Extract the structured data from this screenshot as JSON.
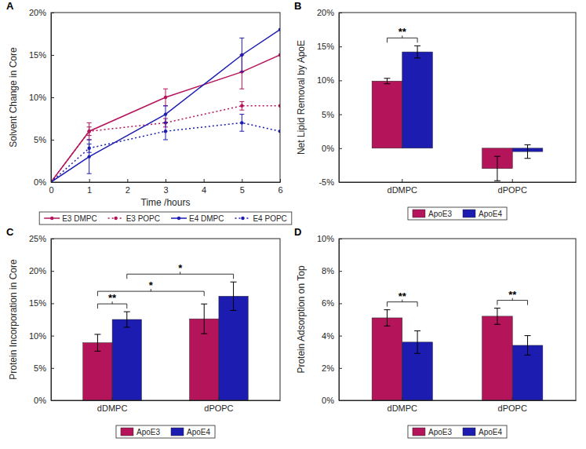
{
  "chart_data": [
    {
      "type": "line",
      "title": "A",
      "x_label": "Time /hours",
      "y_label": "Solvent Change in Core",
      "x": [
        0,
        1,
        3,
        5,
        6
      ],
      "xlim": [
        0,
        6
      ],
      "xticks": [
        0,
        1,
        2,
        3,
        4,
        5,
        6
      ],
      "ylim": [
        0,
        20
      ],
      "yticks": [
        {
          "value": 0,
          "label": "0%"
        },
        {
          "value": 5,
          "label": "5%"
        },
        {
          "value": 10,
          "label": "10%"
        },
        {
          "value": 15,
          "label": "15%"
        },
        {
          "value": 20,
          "label": "20%"
        }
      ],
      "grid": false,
      "legend": "bottom",
      "series": [
        {
          "name": "E3 DMPC",
          "color": "#b4145a",
          "line_style": "solid",
          "marker": "circle",
          "values": [
            0,
            6,
            10,
            13,
            15
          ],
          "errors": [
            null,
            1,
            1,
            2,
            null
          ]
        },
        {
          "name": "E3 POPC",
          "color": "#b4145a",
          "line_style": "dotted",
          "marker": "circle",
          "values": [
            0,
            6,
            7,
            9,
            9
          ],
          "errors": [
            null,
            0.5,
            0.5,
            0.5,
            null
          ]
        },
        {
          "name": "E4 DMPC",
          "color": "#1c1cb0",
          "line_style": "solid",
          "marker": "circle",
          "values": [
            0,
            3,
            8,
            15,
            18
          ],
          "errors": [
            null,
            2,
            1,
            2,
            null
          ]
        },
        {
          "name": "E4 POPC",
          "color": "#1c1cb0",
          "line_style": "dotted",
          "marker": "circle",
          "values": [
            0,
            4,
            6,
            7,
            6
          ],
          "errors": [
            null,
            0.5,
            1,
            1,
            null
          ]
        }
      ]
    },
    {
      "type": "bar",
      "title": "B",
      "y_label": "Net Lipid Removal by ApoE",
      "categories": [
        "dDMPC",
        "dPOPC"
      ],
      "ylim": [
        -5,
        20
      ],
      "yticks": [
        {
          "value": -5,
          "label": "-5%"
        },
        {
          "value": 0,
          "label": "0%"
        },
        {
          "value": 5,
          "label": "5%"
        },
        {
          "value": 10,
          "label": "10%"
        },
        {
          "value": 15,
          "label": "15%"
        },
        {
          "value": 20,
          "label": "20%"
        }
      ],
      "grid": false,
      "legend": "bottom",
      "series": [
        {
          "name": "ApoE3",
          "color": "#b4145a",
          "values": [
            9.9,
            -3.0
          ],
          "errors": [
            0.4,
            1.8
          ]
        },
        {
          "name": "ApoE4",
          "color": "#1c1cb0",
          "values": [
            14.2,
            -0.5
          ],
          "errors": [
            0.9,
            1.0
          ]
        }
      ],
      "significance": [
        {
          "label": "**",
          "from": [
            0,
            0
          ],
          "to": [
            0,
            1
          ]
        }
      ]
    },
    {
      "type": "bar",
      "title": "C",
      "y_label": "Protein Incorporation in Core",
      "categories": [
        "dDMPC",
        "dPOPC"
      ],
      "ylim": [
        0,
        25
      ],
      "yticks": [
        {
          "value": 0,
          "label": "0%"
        },
        {
          "value": 5,
          "label": "5%"
        },
        {
          "value": 10,
          "label": "10%"
        },
        {
          "value": 15,
          "label": "15%"
        },
        {
          "value": 20,
          "label": "20%"
        },
        {
          "value": 25,
          "label": "25%"
        }
      ],
      "grid": false,
      "legend": "bottom",
      "series": [
        {
          "name": "ApoE3",
          "color": "#b4145a",
          "values": [
            8.9,
            12.6
          ],
          "errors": [
            1.3,
            2.3
          ]
        },
        {
          "name": "ApoE4",
          "color": "#1c1cb0",
          "values": [
            12.5,
            16.1
          ],
          "errors": [
            1.2,
            2.2
          ]
        }
      ],
      "significance": [
        {
          "label": "**",
          "from": [
            0,
            0
          ],
          "to": [
            0,
            1
          ]
        },
        {
          "label": "*",
          "from": [
            0,
            0
          ],
          "to": [
            1,
            0
          ]
        },
        {
          "label": "*",
          "from": [
            0,
            1
          ],
          "to": [
            1,
            1
          ]
        }
      ]
    },
    {
      "type": "bar",
      "title": "D",
      "y_label": "Protein Adsorption on Top",
      "categories": [
        "dDMPC",
        "dPOPC"
      ],
      "ylim": [
        0,
        10
      ],
      "yticks": [
        {
          "value": 0,
          "label": "0%"
        },
        {
          "value": 2,
          "label": "2%"
        },
        {
          "value": 4,
          "label": "4%"
        },
        {
          "value": 6,
          "label": "6%"
        },
        {
          "value": 8,
          "label": "8%"
        },
        {
          "value": 10,
          "label": "10%"
        }
      ],
      "grid": false,
      "legend": "bottom",
      "series": [
        {
          "name": "ApoE3",
          "color": "#b4145a",
          "values": [
            5.1,
            5.2
          ],
          "errors": [
            0.5,
            0.5
          ]
        },
        {
          "name": "ApoE4",
          "color": "#1c1cb0",
          "values": [
            3.6,
            3.4
          ],
          "errors": [
            0.7,
            0.6
          ]
        }
      ],
      "significance": [
        {
          "label": "**",
          "from": [
            0,
            0
          ],
          "to": [
            0,
            1
          ]
        },
        {
          "label": "**",
          "from": [
            1,
            0
          ],
          "to": [
            1,
            1
          ]
        }
      ]
    }
  ]
}
